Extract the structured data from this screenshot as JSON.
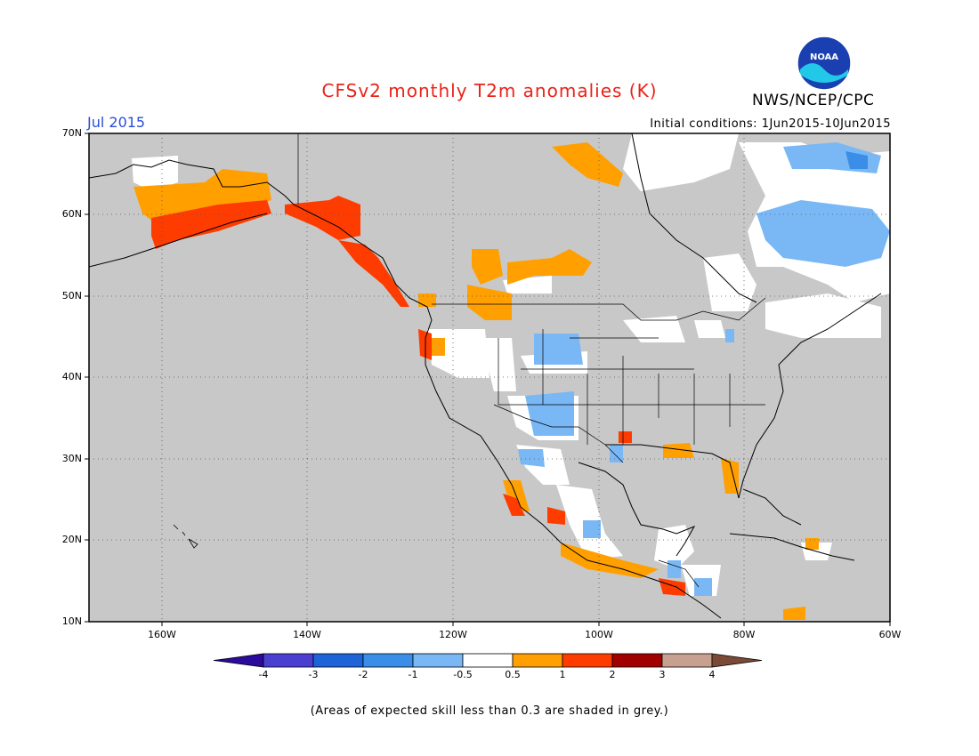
{
  "title": "CFSv2 monthly T2m anomalies (K)",
  "month": "Jul 2015",
  "initial_conditions": "Initial conditions: 1Jun2015-10Jun2015",
  "agency": "NWS/NCEP/CPC",
  "logo_text": "NOAA",
  "lat_labels": [
    "70N",
    "60N",
    "50N",
    "40N",
    "30N",
    "20N",
    "10N"
  ],
  "lon_labels": [
    "160W",
    "140W",
    "120W",
    "100W",
    "80W",
    "60W"
  ],
  "colorbar": {
    "labels": [
      "-4",
      "-3",
      "-2",
      "-1",
      "-0.5",
      "0.5",
      "1",
      "2",
      "3",
      "4"
    ],
    "colors": [
      "#2b0a9c",
      "#4a3fd1",
      "#1f63d9",
      "#3a8ee8",
      "#7ab8f5",
      "#ffffff",
      "#ffa000",
      "#ff3c00",
      "#a00000",
      "#c8a090",
      "#7a4a36"
    ]
  },
  "footnote": "(Areas of expected skill less than 0.3 are shaded in grey.)",
  "colors": {
    "grey": "#c8c8c8",
    "title": "#e8231a",
    "month": "#2a4fd6"
  }
}
